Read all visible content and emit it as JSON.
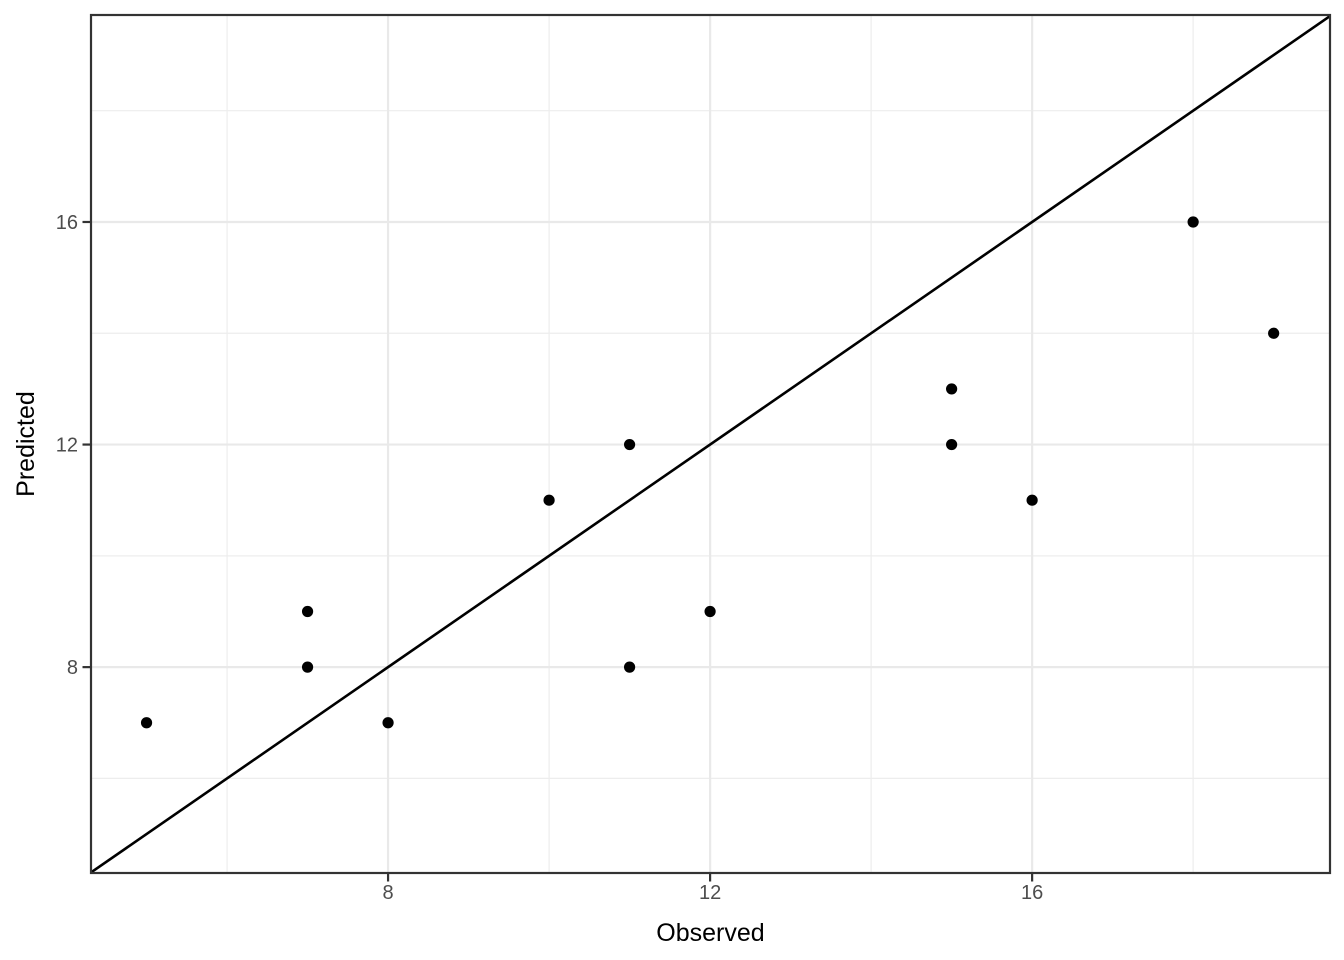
{
  "chart_data": {
    "type": "scatter",
    "title": "",
    "xlabel": "Observed",
    "ylabel": "Predicted",
    "points": [
      {
        "x": 5,
        "y": 7
      },
      {
        "x": 7,
        "y": 8
      },
      {
        "x": 7,
        "y": 9
      },
      {
        "x": 8,
        "y": 7
      },
      {
        "x": 10,
        "y": 11
      },
      {
        "x": 11,
        "y": 8
      },
      {
        "x": 11,
        "y": 12
      },
      {
        "x": 12,
        "y": 9
      },
      {
        "x": 15,
        "y": 12
      },
      {
        "x": 15,
        "y": 13
      },
      {
        "x": 16,
        "y": 11
      },
      {
        "x": 18,
        "y": 16
      },
      {
        "x": 19,
        "y": 14
      }
    ],
    "xlim": [
      4.31,
      19.7
    ],
    "ylim": [
      4.3,
      19.72
    ],
    "x_major_ticks": [
      8,
      12,
      16
    ],
    "y_major_ticks": [
      8,
      12,
      16
    ],
    "x_minor_gridlines": [
      6,
      10,
      14,
      18
    ],
    "y_minor_gridlines": [
      6,
      10,
      14,
      18
    ],
    "identity_line": {
      "slope": 1,
      "intercept": 0
    },
    "grid": "major+minor",
    "legend": "none",
    "colors": {
      "point": "#000000",
      "identity_line": "#000000",
      "panel_border": "#333333",
      "grid_major": "#E9E9E9",
      "grid_minor": "#EDEDED",
      "tick_mark": "#333333",
      "tick_label": "#4D4D4D",
      "axis_title": "#000000",
      "background": "#FFFFFF"
    }
  }
}
